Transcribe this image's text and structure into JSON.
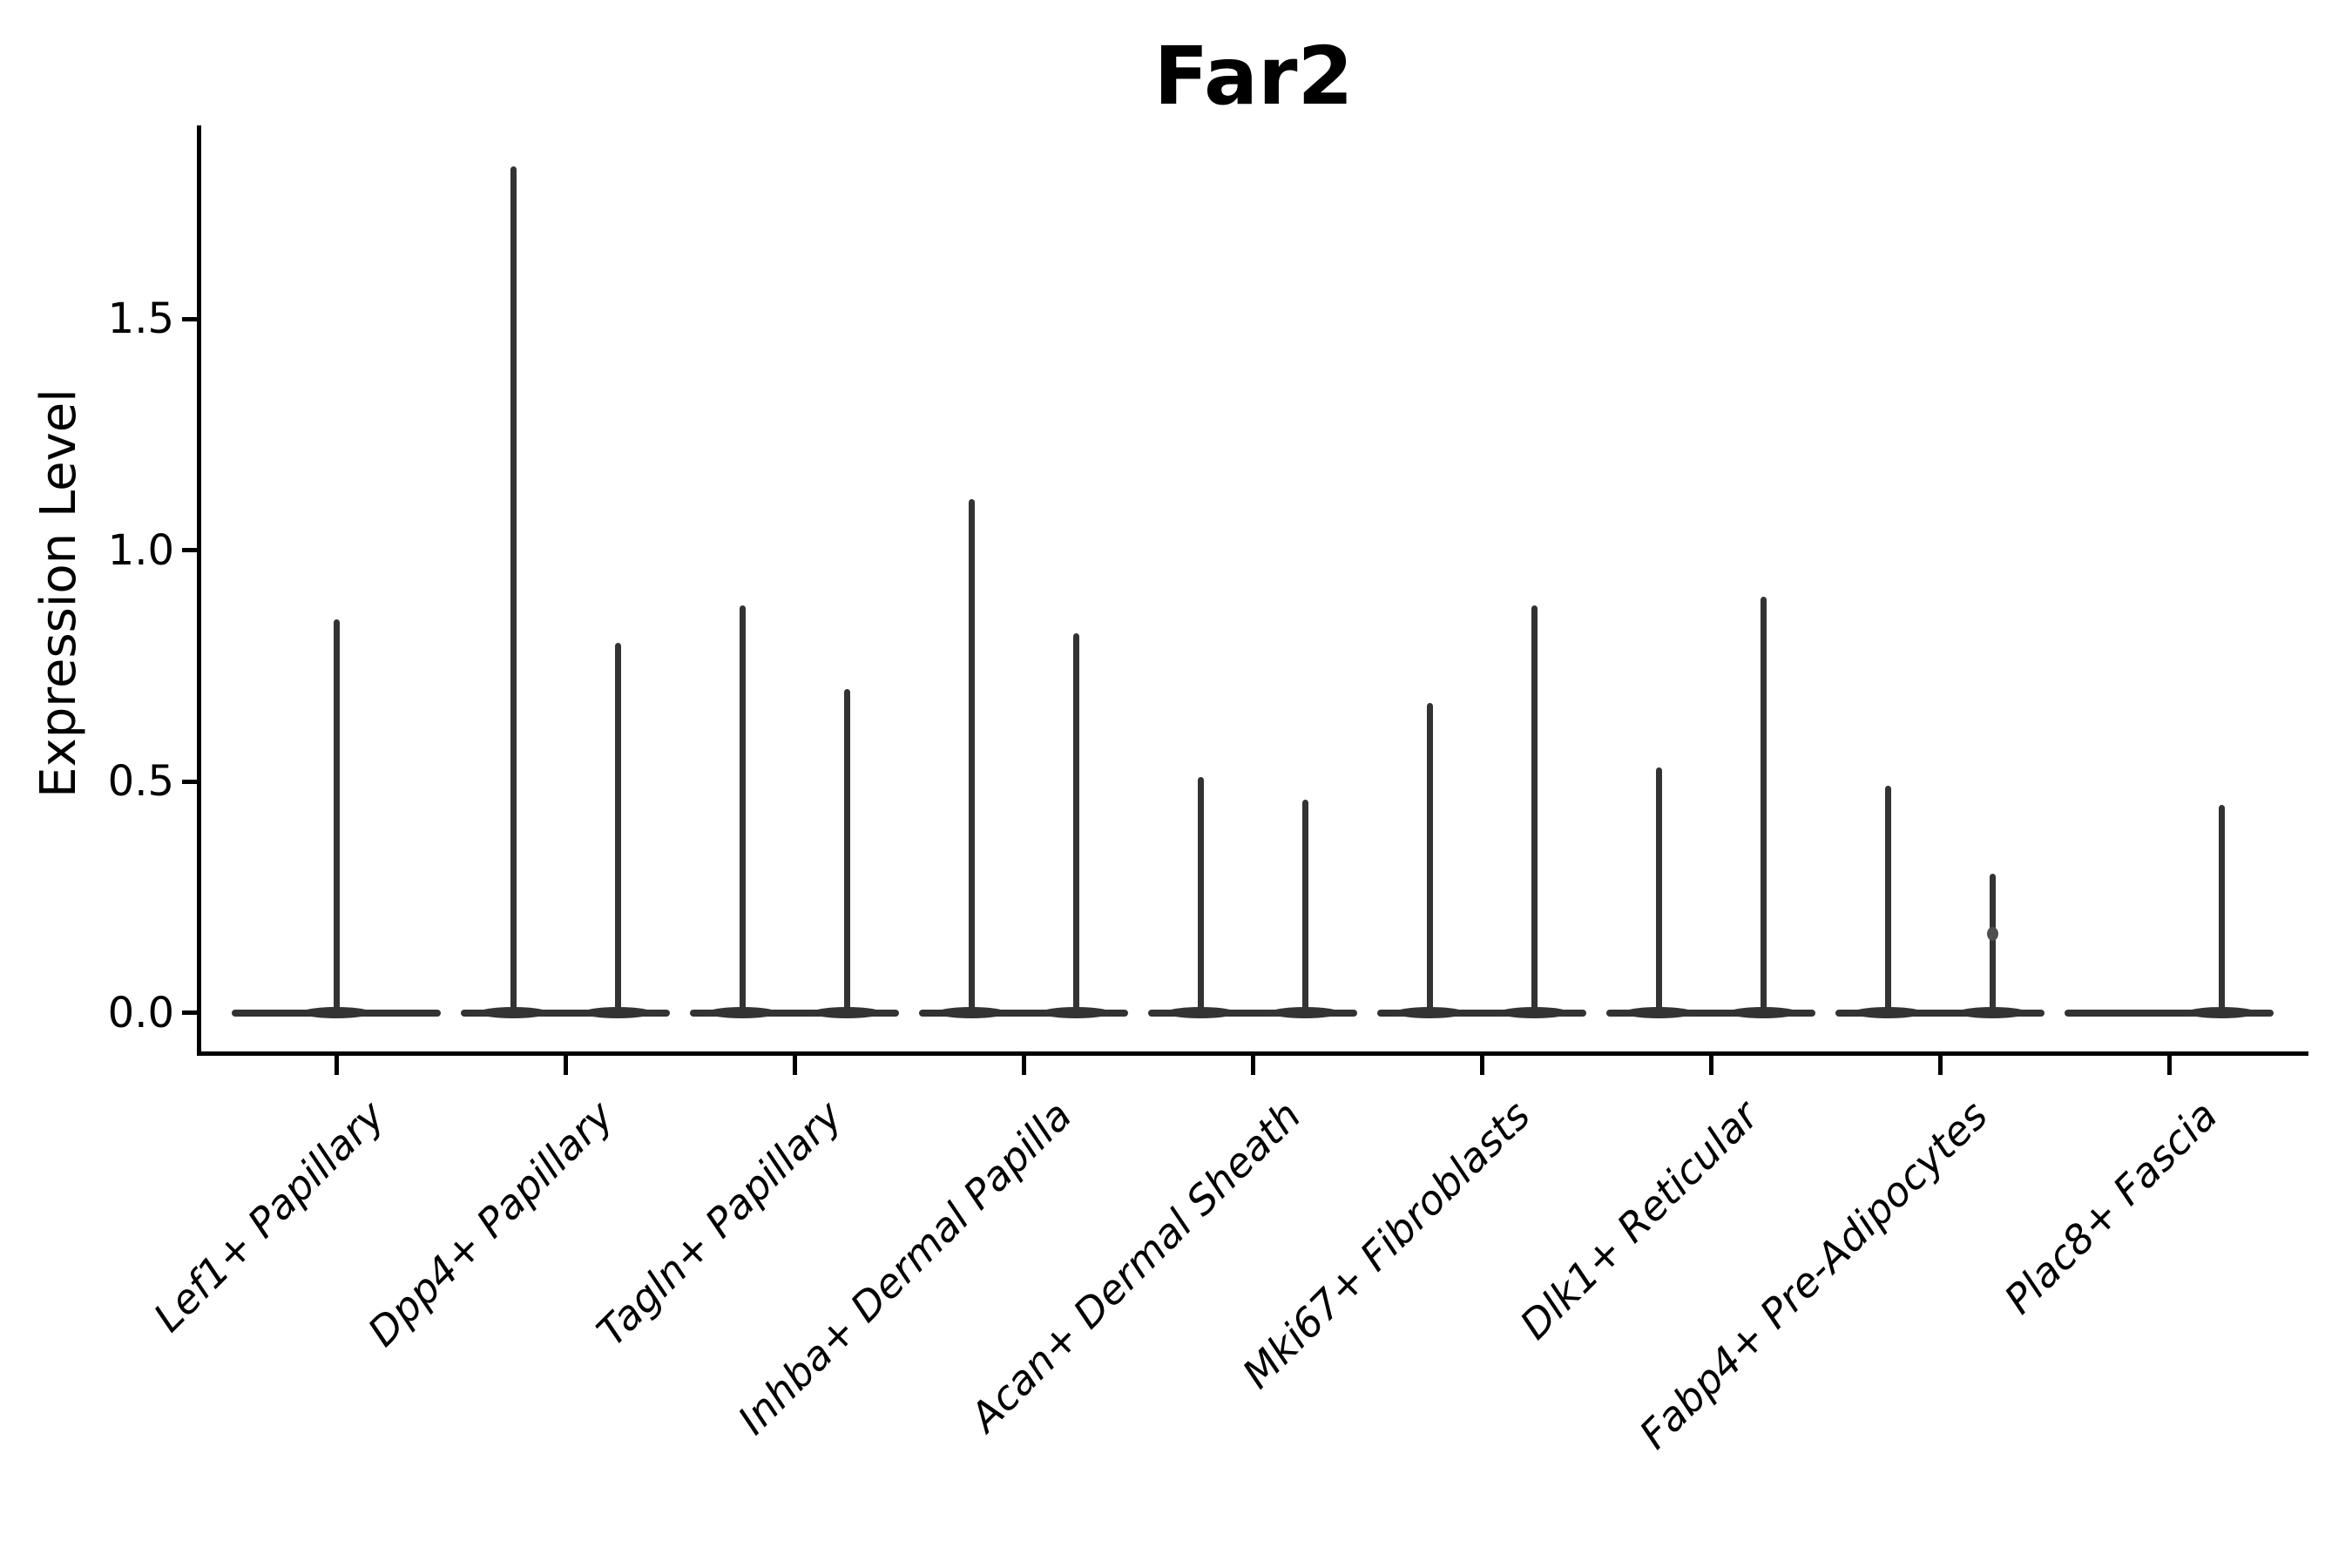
{
  "title": "Far2",
  "ylabel": "Expression Level",
  "colors": {
    "violin": "#333333",
    "axis": "#000000",
    "dot": "#4f4f4f",
    "background": "#ffffff"
  },
  "chart_data": {
    "type": "violin",
    "title": "Far2",
    "xlabel": "",
    "ylabel": "Expression Level",
    "y_ticks": [
      0.0,
      0.5,
      1.0,
      1.5
    ],
    "ylim": [
      -0.09,
      1.92
    ],
    "grid": false,
    "legend": "none",
    "x_tick_rotation": 45,
    "categories": [
      "Lef1+ Papillary",
      "Dpp4+ Papillary",
      "Tagln+ Papillary",
      "Inhba+ Dermal Papilla",
      "Acan+ Dermal Sheath",
      "Mki67+ Fibroblasts",
      "Dlk1+ Reticular",
      "Fabp4+ Pre-Adipocytes",
      "Plac8+ Fascia"
    ],
    "series": [
      {
        "category": "Lef1+ Papillary",
        "spikes": [
          {
            "pos": "center",
            "max": 0.85
          }
        ]
      },
      {
        "category": "Dpp4+ Papillary",
        "spikes": [
          {
            "pos": "left",
            "max": 1.83
          },
          {
            "pos": "right",
            "max": 0.8
          }
        ]
      },
      {
        "category": "Tagln+ Papillary",
        "spikes": [
          {
            "pos": "left",
            "max": 0.88
          },
          {
            "pos": "right",
            "max": 0.7
          }
        ]
      },
      {
        "category": "Inhba+ Dermal Papilla",
        "spikes": [
          {
            "pos": "left",
            "max": 1.11
          },
          {
            "pos": "right",
            "max": 0.82
          }
        ]
      },
      {
        "category": "Acan+ Dermal Sheath",
        "spikes": [
          {
            "pos": "left",
            "max": 0.51
          },
          {
            "pos": "right",
            "max": 0.46
          }
        ]
      },
      {
        "category": "Mki67+ Fibroblasts",
        "spikes": [
          {
            "pos": "left",
            "max": 0.67
          },
          {
            "pos": "right",
            "max": 0.88
          }
        ]
      },
      {
        "category": "Dlk1+ Reticular",
        "spikes": [
          {
            "pos": "left",
            "max": 0.53
          },
          {
            "pos": "right",
            "max": 0.9
          }
        ]
      },
      {
        "category": "Fabp4+ Pre-Adipocytes",
        "spikes": [
          {
            "pos": "left",
            "max": 0.49
          },
          {
            "pos": "right",
            "max": 0.3,
            "dot_at": 0.17
          }
        ]
      },
      {
        "category": "Plac8+ Fascia",
        "spikes": [
          {
            "pos": "right",
            "max": 0.45
          }
        ]
      }
    ],
    "baseline_value": 0.0
  }
}
